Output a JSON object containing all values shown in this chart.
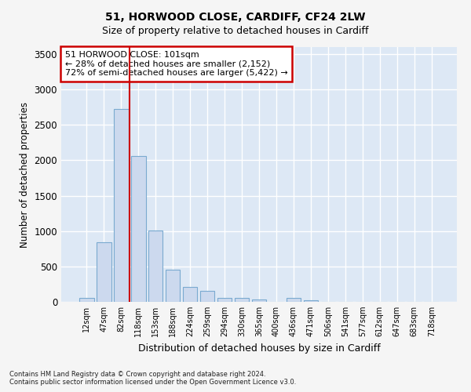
{
  "title1": "51, HORWOOD CLOSE, CARDIFF, CF24 2LW",
  "title2": "Size of property relative to detached houses in Cardiff",
  "xlabel": "Distribution of detached houses by size in Cardiff",
  "ylabel": "Number of detached properties",
  "categories": [
    "12sqm",
    "47sqm",
    "82sqm",
    "118sqm",
    "153sqm",
    "188sqm",
    "224sqm",
    "259sqm",
    "294sqm",
    "330sqm",
    "365sqm",
    "400sqm",
    "436sqm",
    "471sqm",
    "506sqm",
    "541sqm",
    "577sqm",
    "612sqm",
    "647sqm",
    "683sqm",
    "718sqm"
  ],
  "values": [
    55,
    845,
    2720,
    2060,
    1005,
    450,
    215,
    150,
    60,
    50,
    35,
    0,
    50,
    25,
    0,
    0,
    0,
    0,
    0,
    0,
    0
  ],
  "bar_color": "#ccd9ee",
  "bar_edge_color": "#7aaad0",
  "plot_bg_color": "#dde8f5",
  "fig_bg_color": "#f5f5f5",
  "grid_color": "#ffffff",
  "vline_color": "#cc0000",
  "vline_x": 2.5,
  "annotation_text": "51 HORWOOD CLOSE: 101sqm\n← 28% of detached houses are smaller (2,152)\n72% of semi-detached houses are larger (5,422) →",
  "annotation_box_facecolor": "#ffffff",
  "annotation_box_edgecolor": "#cc0000",
  "ylim": [
    0,
    3600
  ],
  "yticks": [
    0,
    500,
    1000,
    1500,
    2000,
    2500,
    3000,
    3500
  ],
  "footnote1": "Contains HM Land Registry data © Crown copyright and database right 2024.",
  "footnote2": "Contains public sector information licensed under the Open Government Licence v3.0."
}
